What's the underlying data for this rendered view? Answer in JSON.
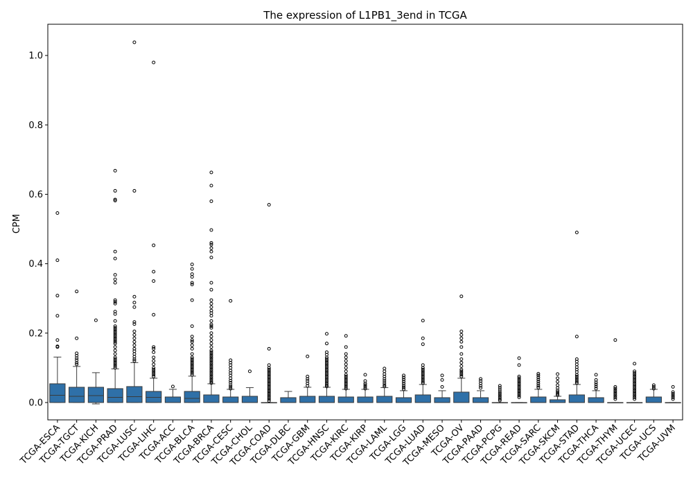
{
  "chart_data": {
    "type": "box",
    "title": "The expression of L1PB1_3end in TCGA",
    "xlabel": "",
    "ylabel": "CPM",
    "ylim": [
      -0.05,
      1.09
    ],
    "yticks": [
      0.0,
      0.2,
      0.4,
      0.6,
      0.8,
      1.0
    ],
    "ytick_labels": [
      "0.0",
      "0.2",
      "0.4",
      "0.6",
      "0.8",
      "1.0"
    ],
    "box_color": "#2f70a8",
    "grid": false,
    "categories": [
      "TCGA-ESCA",
      "TCGA-TGCT",
      "TCGA-KICH",
      "TCGA-PRAD",
      "TCGA-LUSC",
      "TCGA-LIHC",
      "TCGA-ACC",
      "TCGA-BLCA",
      "TCGA-BRCA",
      "TCGA-CESC",
      "TCGA-CHOL",
      "TCGA-COAD",
      "TCGA-DLBC",
      "TCGA-GBM",
      "TCGA-HNSC",
      "TCGA-KIRC",
      "TCGA-KIRP",
      "TCGA-LAML",
      "TCGA-LGG",
      "TCGA-LUAD",
      "TCGA-MESO",
      "TCGA-OV",
      "TCGA-PAAD",
      "TCGA-PCPG",
      "TCGA-READ",
      "TCGA-SARC",
      "TCGA-SKCM",
      "TCGA-STAD",
      "TCGA-THCA",
      "TCGA-THYM",
      "TCGA-UCEC",
      "TCGA-UCS",
      "TCGA-UVM"
    ],
    "boxes": [
      {
        "q1": 0.0,
        "median": 0.021,
        "q3": 0.054,
        "whisker_low": 0.0,
        "whisker_high": 0.131,
        "outliers": [
          0.546,
          0.41,
          0.308,
          0.25,
          0.18,
          0.162,
          0.16
        ]
      },
      {
        "q1": 0.0,
        "median": 0.018,
        "q3": 0.044,
        "whisker_low": 0.0,
        "whisker_high": 0.104,
        "outliers": [
          0.32,
          0.185,
          0.142,
          0.135,
          0.128,
          0.122,
          0.115,
          0.11
        ]
      },
      {
        "q1": 0.0,
        "median": 0.02,
        "q3": 0.044,
        "whisker_low": -0.004,
        "whisker_high": 0.086,
        "outliers": [
          0.237
        ]
      },
      {
        "q1": 0.0,
        "median": 0.015,
        "q3": 0.04,
        "whisker_low": 0.0,
        "whisker_high": 0.097,
        "outliers": [
          0.668,
          0.61,
          0.585,
          0.582,
          0.435,
          0.415,
          0.368,
          0.355,
          0.345,
          0.295,
          0.29,
          0.285,
          0.262,
          0.255,
          0.235,
          0.22,
          0.215,
          0.21,
          0.205,
          0.2,
          0.195,
          0.19,
          0.185,
          0.18,
          0.175,
          0.17,
          0.16,
          0.15,
          0.14,
          0.13,
          0.125,
          0.12,
          0.115,
          0.11,
          0.105,
          0.1
        ]
      },
      {
        "q1": 0.0,
        "median": 0.017,
        "q3": 0.046,
        "whisker_low": 0.0,
        "whisker_high": 0.115,
        "outliers": [
          1.038,
          0.61,
          0.305,
          0.288,
          0.275,
          0.232,
          0.226,
          0.205,
          0.195,
          0.185,
          0.175,
          0.165,
          0.155,
          0.148,
          0.14,
          0.132,
          0.125,
          0.12
        ]
      },
      {
        "q1": 0.0,
        "median": 0.015,
        "q3": 0.032,
        "whisker_low": 0.0,
        "whisker_high": 0.07,
        "outliers": [
          0.98,
          0.453,
          0.377,
          0.35,
          0.253,
          0.16,
          0.155,
          0.145,
          0.13,
          0.12,
          0.11,
          0.1,
          0.095,
          0.09,
          0.085,
          0.08,
          0.075
        ]
      },
      {
        "q1": 0.0,
        "median": 0.0,
        "q3": 0.016,
        "whisker_low": 0.0,
        "whisker_high": 0.038,
        "outliers": [
          0.046
        ]
      },
      {
        "q1": 0.0,
        "median": 0.012,
        "q3": 0.032,
        "whisker_low": 0.0,
        "whisker_high": 0.076,
        "outliers": [
          0.398,
          0.385,
          0.37,
          0.362,
          0.345,
          0.34,
          0.295,
          0.22,
          0.19,
          0.18,
          0.175,
          0.165,
          0.155,
          0.14,
          0.13,
          0.125,
          0.12,
          0.115,
          0.11,
          0.105,
          0.1,
          0.095,
          0.09,
          0.085,
          0.08
        ]
      },
      {
        "q1": 0.0,
        "median": 0.0,
        "q3": 0.022,
        "whisker_low": 0.0,
        "whisker_high": 0.054,
        "outliers": [
          0.663,
          0.625,
          0.58,
          0.497,
          0.46,
          0.455,
          0.445,
          0.435,
          0.418,
          0.345,
          0.325,
          0.295,
          0.285,
          0.275,
          0.265,
          0.258,
          0.25,
          0.235,
          0.225,
          0.22,
          0.215,
          0.2,
          0.19,
          0.18,
          0.17,
          0.16,
          0.15,
          0.145,
          0.14,
          0.135,
          0.13,
          0.125,
          0.12,
          0.115,
          0.11,
          0.105,
          0.1,
          0.095,
          0.09,
          0.085,
          0.08,
          0.075,
          0.07,
          0.065,
          0.06,
          0.056
        ]
      },
      {
        "q1": 0.0,
        "median": 0.0,
        "q3": 0.016,
        "whisker_low": 0.0,
        "whisker_high": 0.038,
        "outliers": [
          0.293,
          0.122,
          0.115,
          0.108,
          0.1,
          0.092,
          0.085,
          0.078,
          0.07,
          0.063,
          0.057,
          0.05,
          0.045,
          0.04
        ]
      },
      {
        "q1": 0.0,
        "median": 0.0,
        "q3": 0.018,
        "whisker_low": 0.0,
        "whisker_high": 0.043,
        "outliers": [
          0.09
        ]
      },
      {
        "q1": 0.0,
        "median": 0.0,
        "q3": 0.0,
        "whisker_low": 0.0,
        "whisker_high": 0.0,
        "outliers": [
          0.57,
          0.155,
          0.108,
          0.1,
          0.095,
          0.09,
          0.085,
          0.08,
          0.075,
          0.07,
          0.065,
          0.06,
          0.055,
          0.05,
          0.045,
          0.04,
          0.035,
          0.03,
          0.025,
          0.02,
          0.015,
          0.01,
          0.005
        ]
      },
      {
        "q1": 0.0,
        "median": 0.0,
        "q3": 0.014,
        "whisker_low": 0.0,
        "whisker_high": 0.032,
        "outliers": []
      },
      {
        "q1": 0.0,
        "median": 0.0,
        "q3": 0.018,
        "whisker_low": 0.0,
        "whisker_high": 0.044,
        "outliers": [
          0.133,
          0.075,
          0.068,
          0.062,
          0.055,
          0.048
        ]
      },
      {
        "q1": 0.0,
        "median": 0.0,
        "q3": 0.018,
        "whisker_low": 0.0,
        "whisker_high": 0.044,
        "outliers": [
          0.198,
          0.17,
          0.145,
          0.138,
          0.13,
          0.125,
          0.12,
          0.115,
          0.11,
          0.105,
          0.1,
          0.095,
          0.09,
          0.085,
          0.08,
          0.075,
          0.07,
          0.065,
          0.06,
          0.055,
          0.05,
          0.046
        ]
      },
      {
        "q1": 0.0,
        "median": 0.0,
        "q3": 0.016,
        "whisker_low": 0.0,
        "whisker_high": 0.038,
        "outliers": [
          0.192,
          0.16,
          0.14,
          0.13,
          0.12,
          0.11,
          0.1,
          0.09,
          0.08,
          0.075,
          0.07,
          0.065,
          0.06,
          0.055,
          0.05,
          0.045,
          0.04
        ]
      },
      {
        "q1": 0.0,
        "median": 0.0,
        "q3": 0.016,
        "whisker_low": 0.0,
        "whisker_high": 0.038,
        "outliers": [
          0.08,
          0.062,
          0.055,
          0.05,
          0.045,
          0.04
        ]
      },
      {
        "q1": 0.0,
        "median": 0.0,
        "q3": 0.018,
        "whisker_low": 0.0,
        "whisker_high": 0.043,
        "outliers": [
          0.098,
          0.09,
          0.082,
          0.075,
          0.068,
          0.062,
          0.056,
          0.05,
          0.046
        ]
      },
      {
        "q1": 0.0,
        "median": 0.0,
        "q3": 0.014,
        "whisker_low": 0.0,
        "whisker_high": 0.034,
        "outliers": [
          0.078,
          0.072,
          0.066,
          0.06,
          0.054,
          0.048,
          0.043,
          0.038
        ]
      },
      {
        "q1": 0.0,
        "median": 0.0,
        "q3": 0.022,
        "whisker_low": 0.0,
        "whisker_high": 0.052,
        "outliers": [
          0.236,
          0.185,
          0.168,
          0.108,
          0.1,
          0.095,
          0.09,
          0.085,
          0.08,
          0.075,
          0.07,
          0.065,
          0.06,
          0.056
        ]
      },
      {
        "q1": 0.0,
        "median": 0.0,
        "q3": 0.014,
        "whisker_low": 0.0,
        "whisker_high": 0.034,
        "outliers": [
          0.078,
          0.065,
          0.045
        ]
      },
      {
        "q1": 0.0,
        "median": 0.0,
        "q3": 0.03,
        "whisker_low": 0.0,
        "whisker_high": 0.07,
        "outliers": [
          0.306,
          0.205,
          0.195,
          0.185,
          0.175,
          0.16,
          0.14,
          0.125,
          0.115,
          0.105,
          0.095,
          0.09,
          0.085,
          0.08,
          0.075
        ]
      },
      {
        "q1": 0.0,
        "median": 0.0,
        "q3": 0.014,
        "whisker_low": 0.0,
        "whisker_high": 0.034,
        "outliers": [
          0.068,
          0.062,
          0.055,
          0.048,
          0.042
        ]
      },
      {
        "q1": 0.0,
        "median": 0.0,
        "q3": 0.0,
        "whisker_low": 0.0,
        "whisker_high": 0.0,
        "outliers": [
          0.048,
          0.042,
          0.036,
          0.03,
          0.025,
          0.02,
          0.015,
          0.01,
          0.006
        ]
      },
      {
        "q1": 0.0,
        "median": 0.0,
        "q3": 0.0,
        "whisker_low": 0.0,
        "whisker_high": 0.0,
        "outliers": [
          0.128,
          0.108,
          0.075,
          0.07,
          0.065,
          0.06,
          0.055,
          0.05,
          0.045,
          0.04,
          0.035,
          0.03,
          0.025,
          0.02,
          0.015
        ]
      },
      {
        "q1": 0.0,
        "median": 0.0,
        "q3": 0.016,
        "whisker_low": 0.0,
        "whisker_high": 0.038,
        "outliers": [
          0.083,
          0.078,
          0.072,
          0.066,
          0.06,
          0.054,
          0.048,
          0.043
        ]
      },
      {
        "q1": 0.0,
        "median": 0.0,
        "q3": 0.008,
        "whisker_low": 0.0,
        "whisker_high": 0.018,
        "outliers": [
          0.082,
          0.07,
          0.06,
          0.05,
          0.042,
          0.035,
          0.03,
          0.025,
          0.021
        ]
      },
      {
        "q1": 0.0,
        "median": 0.0,
        "q3": 0.022,
        "whisker_low": 0.0,
        "whisker_high": 0.052,
        "outliers": [
          0.49,
          0.19,
          0.125,
          0.118,
          0.11,
          0.102,
          0.095,
          0.088,
          0.08,
          0.075,
          0.07,
          0.065,
          0.06,
          0.056
        ]
      },
      {
        "q1": 0.0,
        "median": 0.0,
        "q3": 0.014,
        "whisker_low": 0.0,
        "whisker_high": 0.034,
        "outliers": [
          0.08,
          0.065,
          0.058,
          0.052,
          0.046,
          0.04
        ]
      },
      {
        "q1": 0.0,
        "median": 0.0,
        "q3": 0.0,
        "whisker_low": 0.0,
        "whisker_high": 0.0,
        "outliers": [
          0.18,
          0.045,
          0.04,
          0.035,
          0.03,
          0.025,
          0.02,
          0.015,
          0.01
        ]
      },
      {
        "q1": 0.0,
        "median": 0.0,
        "q3": 0.0,
        "whisker_low": 0.0,
        "whisker_high": 0.0,
        "outliers": [
          0.112,
          0.09,
          0.085,
          0.08,
          0.075,
          0.07,
          0.065,
          0.06,
          0.055,
          0.05,
          0.045,
          0.04,
          0.035,
          0.03,
          0.025,
          0.02,
          0.015,
          0.01
        ]
      },
      {
        "q1": 0.0,
        "median": 0.0,
        "q3": 0.016,
        "whisker_low": 0.0,
        "whisker_high": 0.038,
        "outliers": [
          0.05,
          0.045,
          0.04
        ]
      },
      {
        "q1": 0.0,
        "median": 0.0,
        "q3": 0.0,
        "whisker_low": 0.0,
        "whisker_high": 0.0,
        "outliers": [
          0.045,
          0.03,
          0.025,
          0.02,
          0.015,
          0.01
        ]
      }
    ]
  }
}
